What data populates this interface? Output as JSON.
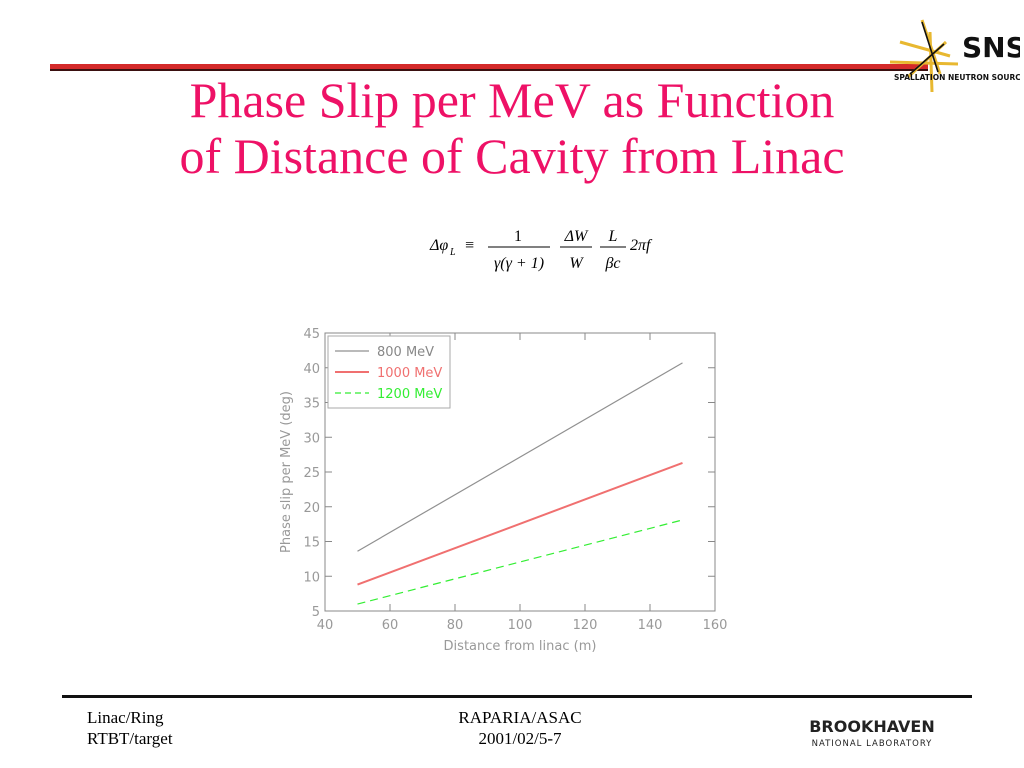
{
  "slide": {
    "title_line1": "Phase Slip per MeV as Function",
    "title_line2": "of Distance of Cavity from Linac",
    "accent_color": "#ee1166"
  },
  "logo_sns": {
    "text": "SNS",
    "subtext": "SPALLATION NEUTRON SOURCE",
    "icon": "sns-starburst-logo"
  },
  "formula": {
    "lhs": "Δφ",
    "lhs_sub": "L",
    "equiv": "≡",
    "frac1_num": "1",
    "frac1_den": "γ(γ + 1)",
    "frac2_num": "ΔW",
    "frac2_den": "W",
    "frac3_num": "L",
    "frac3_den": "βc",
    "tail": "2πf"
  },
  "chart_data": {
    "type": "line",
    "xlabel": "Distance from linac (m)",
    "ylabel": "Phase slip per MeV (deg)",
    "xlim": [
      40,
      160
    ],
    "ylim": [
      5,
      45
    ],
    "xticks": [
      40,
      60,
      80,
      100,
      120,
      140,
      160
    ],
    "yticks": [
      5,
      10,
      15,
      20,
      25,
      30,
      35,
      40,
      45
    ],
    "legend_position": "top-left",
    "grid": false,
    "series": [
      {
        "name": "800  MeV",
        "color": "#909090",
        "dash": "solid",
        "x": [
          50,
          150
        ],
        "y": [
          13.6,
          40.7
        ]
      },
      {
        "name": "1000  MeV",
        "color": "#f07070",
        "dash": "solid",
        "x": [
          50,
          150
        ],
        "y": [
          8.8,
          26.3
        ]
      },
      {
        "name": "1200  MeV",
        "color": "#33ee33",
        "dash": "dashed",
        "x": [
          50,
          150
        ],
        "y": [
          6.0,
          18.1
        ]
      }
    ]
  },
  "footer": {
    "left_line1": "Linac/Ring",
    "left_line2": "RTBT/target",
    "center_line1": "RAPARIA/ASAC",
    "center_line2": "2001/02/5-7"
  },
  "logo_bnl": {
    "name": "BROOKHAVEN",
    "subname": "NATIONAL LABORATORY"
  }
}
